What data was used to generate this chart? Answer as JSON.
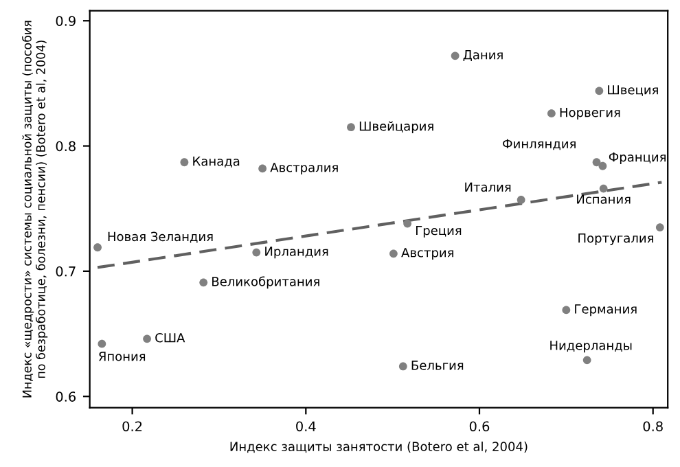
{
  "chart_data": {
    "type": "scatter",
    "xlabel": "Индекс защиты занятости (Botero et al, 2004)",
    "ylabel": "Индекс «щедрости» системы социальной защиты (пособия\nпо безработице, болезни, пенсии) (Botero et al, 2004)",
    "xlim": [
      0.151,
      0.817
    ],
    "ylim": [
      0.591,
      0.908
    ],
    "xticks": [
      0.2,
      0.4,
      0.6,
      0.8
    ],
    "yticks": [
      0.6,
      0.7,
      0.8,
      0.9
    ],
    "grid": false,
    "legend": false,
    "series": [
      {
        "marker": "circle",
        "color": "#808080",
        "x": [
          0.26,
          0.35,
          0.452,
          0.572,
          0.738,
          0.683,
          0.735,
          0.742,
          0.648,
          0.743,
          0.517,
          0.808,
          0.16,
          0.343,
          0.282,
          0.217,
          0.165,
          0.501,
          0.7,
          0.724,
          0.512
        ],
        "values": [
          0.787,
          0.782,
          0.815,
          0.872,
          0.844,
          0.826,
          0.787,
          0.784,
          0.757,
          0.766,
          0.738,
          0.735,
          0.719,
          0.715,
          0.691,
          0.646,
          0.642,
          0.714,
          0.669,
          0.629,
          0.624
        ]
      },
      {
        "type": "line",
        "color": "#606060",
        "line_style": "dashed",
        "x": [
          0.16,
          0.81
        ],
        "values": [
          0.703,
          0.771
        ]
      }
    ],
    "annotations": [
      {
        "text": "Канада",
        "x": 0.26,
        "y": 0.787
      },
      {
        "text": "Австралия",
        "x": 0.35,
        "y": 0.782
      },
      {
        "text": "Швейцария",
        "x": 0.452,
        "y": 0.815
      },
      {
        "text": "Дания",
        "x": 0.572,
        "y": 0.872
      },
      {
        "text": "Швеция",
        "x": 0.738,
        "y": 0.844
      },
      {
        "text": "Норвегия",
        "x": 0.683,
        "y": 0.826
      },
      {
        "text": "Финляндия",
        "x": 0.735,
        "y": 0.787
      },
      {
        "text": "Франция",
        "x": 0.742,
        "y": 0.784
      },
      {
        "text": "Италия",
        "x": 0.648,
        "y": 0.757
      },
      {
        "text": "Испания",
        "x": 0.743,
        "y": 0.766
      },
      {
        "text": "Греция",
        "x": 0.517,
        "y": 0.738
      },
      {
        "text": "Португалия",
        "x": 0.808,
        "y": 0.735
      },
      {
        "text": "Новая Зеландия",
        "x": 0.16,
        "y": 0.719
      },
      {
        "text": "Ирландия",
        "x": 0.343,
        "y": 0.715
      },
      {
        "text": "Великобритания",
        "x": 0.282,
        "y": 0.691
      },
      {
        "text": "США",
        "x": 0.217,
        "y": 0.646
      },
      {
        "text": "Япония",
        "x": 0.165,
        "y": 0.642
      },
      {
        "text": "Австрия",
        "x": 0.501,
        "y": 0.714
      },
      {
        "text": "Германия",
        "x": 0.7,
        "y": 0.669
      },
      {
        "text": "Нидерланды",
        "x": 0.724,
        "y": 0.629
      },
      {
        "text": "Бельгия",
        "x": 0.512,
        "y": 0.624
      }
    ]
  }
}
